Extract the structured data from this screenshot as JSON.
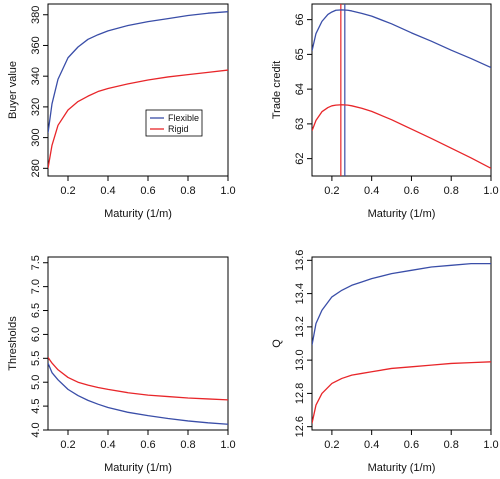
{
  "colors": {
    "flexible": "#3a4ea8",
    "rigid": "#e8262a",
    "axis": "#000000"
  },
  "chart_data": [
    {
      "type": "line",
      "xlabel": "Maturity (1/m)",
      "ylabel": "Buyer value",
      "xlim": [
        0.1,
        1.0
      ],
      "ylim": [
        275,
        387
      ],
      "xticks": [
        "0.2",
        "0.4",
        "0.6",
        "0.8",
        "1.0"
      ],
      "xtick_values": [
        0.2,
        0.4,
        0.6,
        0.8,
        1.0
      ],
      "yticks": [
        "280",
        "300",
        "320",
        "340",
        "360",
        "380"
      ],
      "ytick_values": [
        280,
        300,
        320,
        340,
        360,
        380
      ],
      "legend": {
        "position": "center-right",
        "entries": [
          "Flexible",
          "Rigid"
        ]
      },
      "series": [
        {
          "name": "Flexible",
          "color": "#3a4ea8",
          "x": [
            0.1,
            0.12,
            0.15,
            0.2,
            0.25,
            0.3,
            0.35,
            0.4,
            0.5,
            0.6,
            0.7,
            0.8,
            0.9,
            1.0
          ],
          "y": [
            303,
            322,
            338,
            352,
            359,
            364,
            367,
            369.5,
            373,
            375.5,
            377.5,
            379.5,
            381,
            382
          ]
        },
        {
          "name": "Rigid",
          "color": "#e8262a",
          "x": [
            0.1,
            0.12,
            0.15,
            0.2,
            0.25,
            0.3,
            0.35,
            0.4,
            0.5,
            0.6,
            0.7,
            0.8,
            0.9,
            1.0
          ],
          "y": [
            280,
            295,
            308,
            318,
            323.5,
            327,
            330,
            332,
            335,
            337.5,
            339.5,
            341,
            342.5,
            344
          ]
        }
      ]
    },
    {
      "type": "line",
      "xlabel": "Maturity (1/m)",
      "ylabel": "Trade credit",
      "xlim": [
        0.1,
        1.0
      ],
      "ylim": [
        61.5,
        66.45
      ],
      "xticks": [
        "0.2",
        "0.4",
        "0.6",
        "0.8",
        "1.0"
      ],
      "xtick_values": [
        0.2,
        0.4,
        0.6,
        0.8,
        1.0
      ],
      "yticks": [
        "62",
        "63",
        "64",
        "65",
        "66"
      ],
      "ytick_values": [
        62,
        63,
        64,
        65,
        66
      ],
      "vlines": [
        {
          "x": 0.245,
          "color": "#e8262a"
        },
        {
          "x": 0.265,
          "color": "#3a4ea8"
        }
      ],
      "series": [
        {
          "name": "Flexible",
          "color": "#3a4ea8",
          "x": [
            0.1,
            0.12,
            0.15,
            0.18,
            0.2,
            0.22,
            0.25,
            0.28,
            0.3,
            0.35,
            0.4,
            0.5,
            0.6,
            0.7,
            0.8,
            0.9,
            1.0
          ],
          "y": [
            65.1,
            65.6,
            65.95,
            66.15,
            66.22,
            66.27,
            66.28,
            66.27,
            66.25,
            66.18,
            66.1,
            65.88,
            65.62,
            65.38,
            65.12,
            64.88,
            64.62
          ]
        },
        {
          "name": "Rigid",
          "color": "#e8262a",
          "x": [
            0.1,
            0.12,
            0.15,
            0.18,
            0.2,
            0.22,
            0.25,
            0.28,
            0.3,
            0.35,
            0.4,
            0.5,
            0.6,
            0.7,
            0.8,
            0.9,
            1.0
          ],
          "y": [
            62.8,
            63.1,
            63.35,
            63.47,
            63.52,
            63.54,
            63.55,
            63.54,
            63.52,
            63.45,
            63.36,
            63.12,
            62.85,
            62.58,
            62.3,
            62.02,
            61.72
          ]
        }
      ]
    },
    {
      "type": "line",
      "xlabel": "Maturity (1/m)",
      "ylabel": "Thresholds",
      "xlim": [
        0.1,
        1.0
      ],
      "ylim": [
        4.0,
        7.62
      ],
      "xticks": [
        "0.2",
        "0.4",
        "0.6",
        "0.8",
        "1.0"
      ],
      "xtick_values": [
        0.2,
        0.4,
        0.6,
        0.8,
        1.0
      ],
      "yticks": [
        "4.0",
        "4.5",
        "5.0",
        "5.5",
        "6.0",
        "6.5",
        "7.0",
        "7.5"
      ],
      "ytick_values": [
        4.0,
        4.5,
        5.0,
        5.5,
        6.0,
        6.5,
        7.0,
        7.5
      ],
      "series": [
        {
          "name": "Flexible",
          "color": "#3a4ea8",
          "x": [
            0.1,
            0.12,
            0.15,
            0.2,
            0.25,
            0.3,
            0.35,
            0.4,
            0.5,
            0.6,
            0.7,
            0.8,
            0.9,
            1.0
          ],
          "y": [
            5.4,
            5.2,
            5.05,
            4.85,
            4.72,
            4.62,
            4.54,
            4.47,
            4.37,
            4.3,
            4.24,
            4.19,
            4.15,
            4.12
          ]
        },
        {
          "name": "Rigid",
          "color": "#e8262a",
          "x": [
            0.1,
            0.12,
            0.15,
            0.2,
            0.25,
            0.3,
            0.35,
            0.4,
            0.5,
            0.6,
            0.7,
            0.8,
            0.9,
            1.0
          ],
          "y": [
            5.52,
            5.4,
            5.26,
            5.1,
            5.0,
            4.94,
            4.89,
            4.85,
            4.78,
            4.73,
            4.7,
            4.67,
            4.65,
            4.63
          ]
        }
      ]
    },
    {
      "type": "line",
      "xlabel": "Maturity (1/m)",
      "ylabel": "Q",
      "xlim": [
        0.1,
        1.0
      ],
      "ylim": [
        12.58,
        13.62
      ],
      "xticks": [
        "0.2",
        "0.4",
        "0.6",
        "0.8",
        "1.0"
      ],
      "xtick_values": [
        0.2,
        0.4,
        0.6,
        0.8,
        1.0
      ],
      "yticks": [
        "12.6",
        "12.8",
        "13.0",
        "13.2",
        "13.4",
        "13.6"
      ],
      "ytick_values": [
        12.6,
        12.8,
        13.0,
        13.2,
        13.4,
        13.6
      ],
      "series": [
        {
          "name": "Flexible",
          "color": "#3a4ea8",
          "x": [
            0.1,
            0.12,
            0.15,
            0.2,
            0.25,
            0.3,
            0.35,
            0.4,
            0.5,
            0.6,
            0.7,
            0.8,
            0.9,
            1.0
          ],
          "y": [
            13.09,
            13.22,
            13.3,
            13.38,
            13.42,
            13.45,
            13.47,
            13.49,
            13.52,
            13.54,
            13.56,
            13.57,
            13.58,
            13.58
          ]
        },
        {
          "name": "Rigid",
          "color": "#e8262a",
          "x": [
            0.1,
            0.12,
            0.15,
            0.2,
            0.25,
            0.3,
            0.35,
            0.4,
            0.5,
            0.6,
            0.7,
            0.8,
            0.9,
            1.0
          ],
          "y": [
            12.62,
            12.73,
            12.8,
            12.86,
            12.89,
            12.91,
            12.92,
            12.93,
            12.95,
            12.96,
            12.97,
            12.98,
            12.985,
            12.99
          ]
        }
      ]
    }
  ]
}
